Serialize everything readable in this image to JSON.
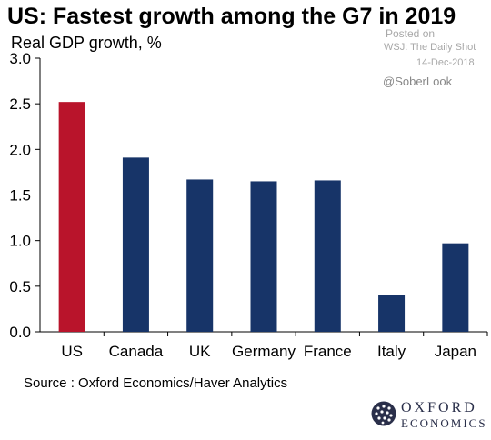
{
  "header": {
    "title": "US: Fastest growth among the G7 in 2019",
    "subtitle": "Real GDP growth, %"
  },
  "watermark": {
    "line1": "Posted on",
    "line2": "WSJ: The Daily Shot",
    "line3": "14-Dec-2018",
    "handle": "@SoberLook"
  },
  "footer": {
    "source": "Source : Oxford Economics/Haver Analytics",
    "logo_line1": "OXFORD",
    "logo_line2": "ECONOMICS"
  },
  "colors": {
    "highlight": "#b9142b",
    "bar": "#173468",
    "logo_dark": "#2a2f4a"
  },
  "chart_data": {
    "type": "bar",
    "categories": [
      "US",
      "Canada",
      "UK",
      "Germany",
      "France",
      "Italy",
      "Japan"
    ],
    "values": [
      2.52,
      1.91,
      1.67,
      1.65,
      1.66,
      0.4,
      0.97
    ],
    "highlight_index": 0,
    "ylim": [
      0,
      3.0
    ],
    "yticks": [
      "0.0",
      "0.5",
      "1.0",
      "1.5",
      "2.0",
      "2.5",
      "3.0"
    ],
    "grid": false
  }
}
